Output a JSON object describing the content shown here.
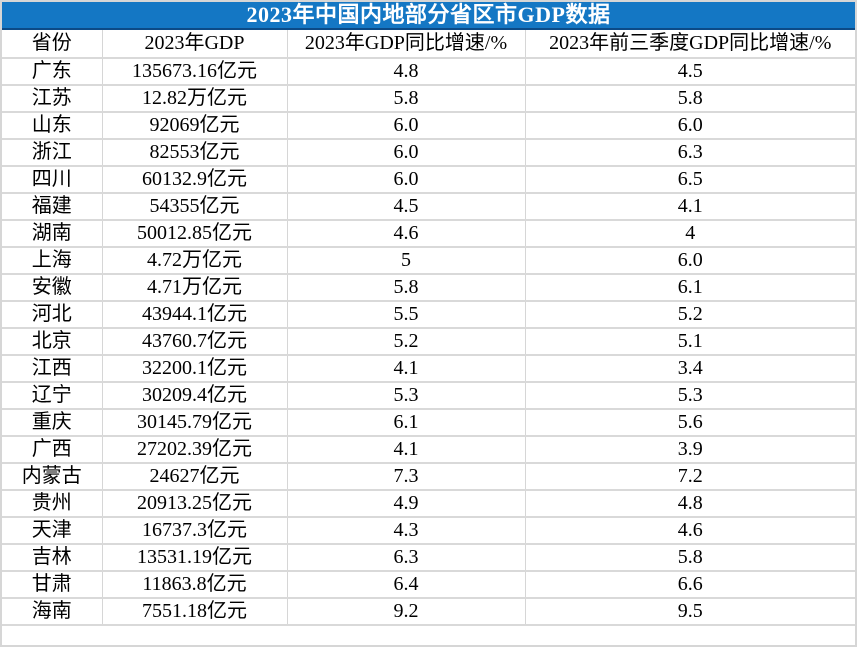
{
  "colors": {
    "title_bar_bg": "#1477c4",
    "title_bar_edge": "#0c4a86",
    "title_text": "#ffffff",
    "grid_line": "#d6d6d6",
    "cell_text": "#000000",
    "cell_bg": "#ffffff"
  },
  "chart_data": {
    "type": "table",
    "title": "2023年中国内地部分省区市GDP数据",
    "columns": [
      "省份",
      "2023年GDP",
      "2023年GDP同比增速/%",
      "2023年前三季度GDP同比增速/%"
    ],
    "rows": [
      [
        "广东",
        "135673.16亿元",
        "4.8",
        "4.5"
      ],
      [
        "江苏",
        "12.82万亿元",
        "5.8",
        "5.8"
      ],
      [
        "山东",
        "92069亿元",
        "6.0",
        "6.0"
      ],
      [
        "浙江",
        "82553亿元",
        "6.0",
        "6.3"
      ],
      [
        "四川",
        "60132.9亿元",
        "6.0",
        "6.5"
      ],
      [
        "福建",
        "54355亿元",
        "4.5",
        "4.1"
      ],
      [
        "湖南",
        "50012.85亿元",
        "4.6",
        "4"
      ],
      [
        "上海",
        "4.72万亿元",
        "5",
        "6.0"
      ],
      [
        "安徽",
        "4.71万亿元",
        "5.8",
        "6.1"
      ],
      [
        "河北",
        "43944.1亿元",
        "5.5",
        "5.2"
      ],
      [
        "北京",
        "43760.7亿元",
        "5.2",
        "5.1"
      ],
      [
        "江西",
        "32200.1亿元",
        "4.1",
        "3.4"
      ],
      [
        "辽宁",
        "30209.4亿元",
        "5.3",
        "5.3"
      ],
      [
        "重庆",
        "30145.79亿元",
        "6.1",
        "5.6"
      ],
      [
        "广西",
        "27202.39亿元",
        "4.1",
        "3.9"
      ],
      [
        "内蒙古",
        "24627亿元",
        "7.3",
        "7.2"
      ],
      [
        "贵州",
        "20913.25亿元",
        "4.9",
        "4.8"
      ],
      [
        "天津",
        "16737.3亿元",
        "4.3",
        "4.6"
      ],
      [
        "吉林",
        "13531.19亿元",
        "6.3",
        "5.8"
      ],
      [
        "甘肃",
        "11863.8亿元",
        "6.4",
        "6.6"
      ],
      [
        "海南",
        "7551.18亿元",
        "9.2",
        "9.5"
      ]
    ]
  }
}
